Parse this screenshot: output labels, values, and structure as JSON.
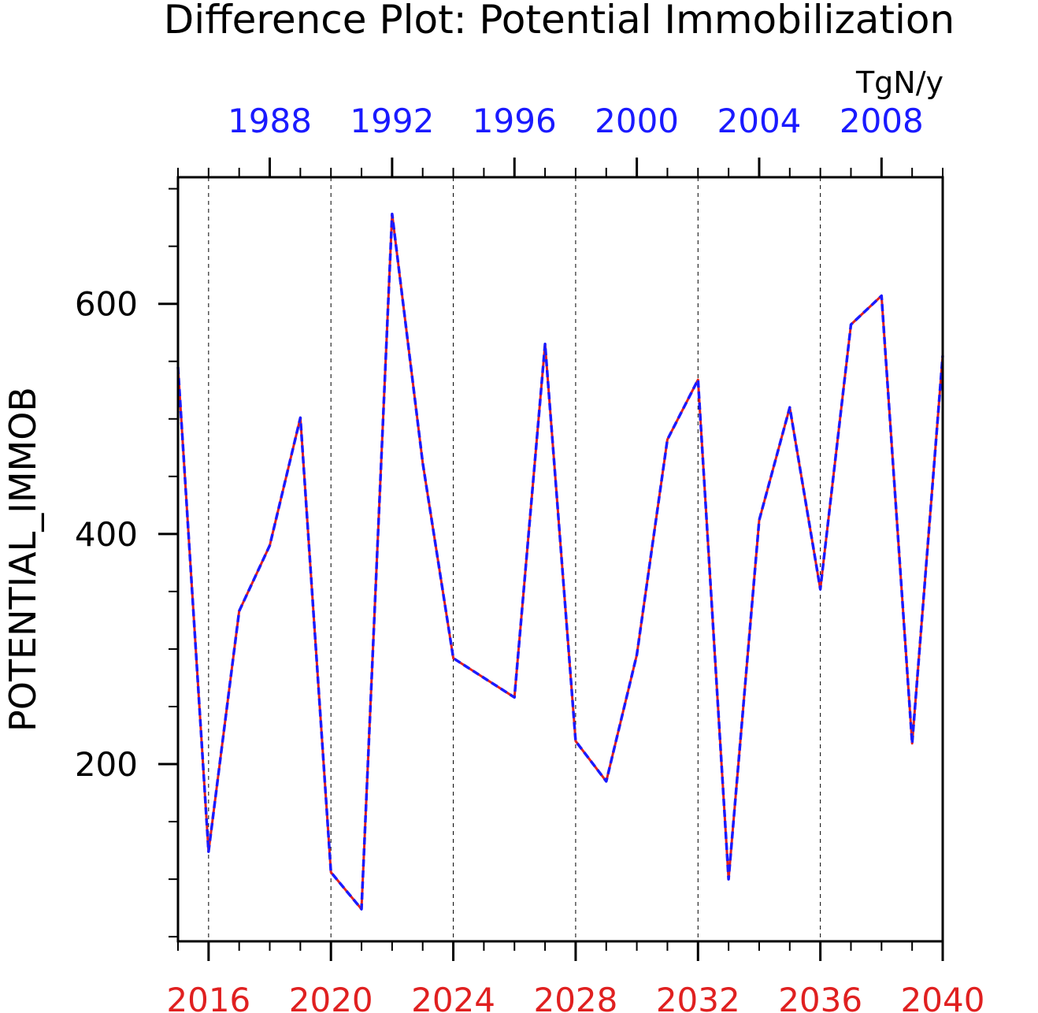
{
  "chart_data": {
    "type": "line",
    "title": "Difference Plot: Potential Immobilization",
    "units": "TgN/y",
    "ylabel": "POTENTIAL_IMMOB",
    "ylim": [
      46,
      710
    ],
    "yticks": [
      200,
      400,
      600
    ],
    "bottom_axis": {
      "xlim": [
        2015,
        2040
      ],
      "ticks": [
        2016,
        2020,
        2024,
        2028,
        2032,
        2036,
        2040
      ],
      "color": "#e02020"
    },
    "top_axis": {
      "xlim": [
        1985,
        2010
      ],
      "ticks": [
        1988,
        1992,
        1996,
        2000,
        2004,
        2008
      ],
      "color": "#1a1aff"
    },
    "grid": "vertical dashed at bottom-axis major ticks",
    "x": [
      2015,
      2016,
      2017,
      2018,
      2019,
      2020,
      2021,
      2022,
      2023,
      2024,
      2025,
      2026,
      2027,
      2028,
      2029,
      2030,
      2031,
      2032,
      2033,
      2034,
      2035,
      2036,
      2037,
      2038,
      2039,
      2040
    ],
    "series": [
      {
        "color": "#e02020",
        "dash": "solid",
        "values": [
          545,
          124,
          333,
          390,
          501,
          106,
          74,
          678,
          462,
          292,
          275,
          258,
          565,
          220,
          185,
          295,
          482,
          534,
          100,
          412,
          510,
          352,
          582,
          607,
          218,
          555
        ]
      },
      {
        "color": "#1a1aff",
        "dash": "dashed",
        "values": [
          545,
          124,
          333,
          390,
          501,
          106,
          74,
          678,
          462,
          292,
          275,
          258,
          565,
          220,
          185,
          295,
          482,
          534,
          100,
          412,
          510,
          352,
          582,
          607,
          218,
          555
        ]
      }
    ]
  }
}
